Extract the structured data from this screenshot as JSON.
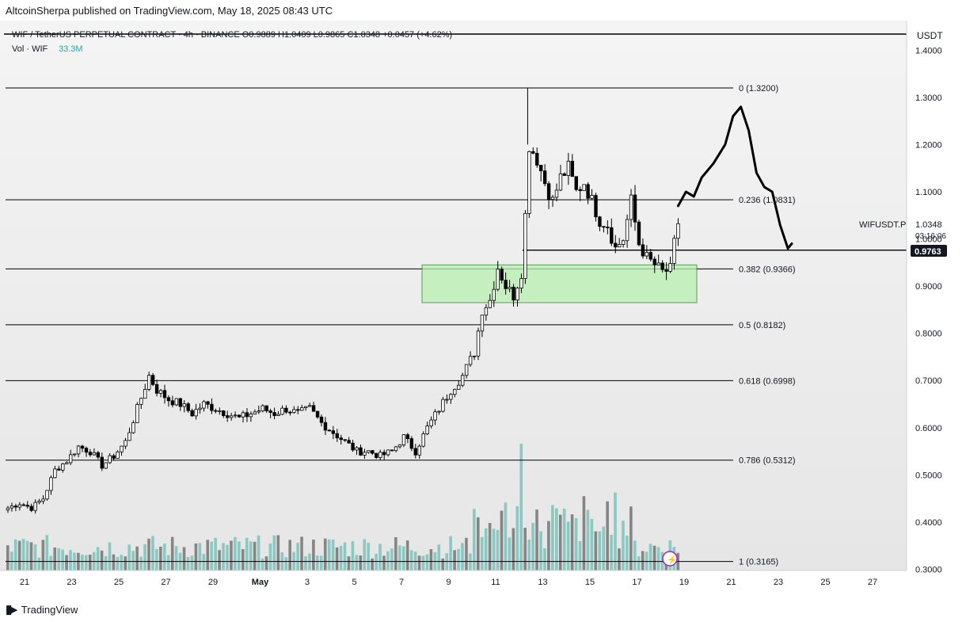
{
  "header": {
    "publisher": "AltcoinSherpa published on TradingView.com, May 18, 2025 08:43 UTC"
  },
  "legend": {
    "line1": "WIF / TetherUS PERPETUAL CONTRACT · 4h · BINANCE  O0.9889  H1.0409  L0.9865  C1.0348  +0.0457 (+4.62%)",
    "vol_label": "Vol · WIF",
    "vol_value": "33.3M"
  },
  "price_scale": {
    "currency": "USDT",
    "ticker_label": "WIFUSDT.P",
    "last_price": "1.0348",
    "countdown": "03:16:06",
    "line_price": "0.9763"
  },
  "footer": {
    "brand": "TradingView"
  },
  "colors": {
    "up": "#ffffff",
    "down": "#000000",
    "candle_border": "#000000",
    "vol_up": "#7fc4be",
    "vol_down": "#7a7a7a",
    "zone": "#b8f0b0",
    "zone_border": "#2e7d32",
    "fib_line": "#000000",
    "projection": "#000000",
    "alert": "#9c27b0"
  },
  "chart_data": {
    "type": "candlestick",
    "symbol": "WIFUSDT.P",
    "timeframe": "4h",
    "ylim": [
      0.29,
      1.45
    ],
    "y_ticks": [
      "1.4000",
      "1.3000",
      "1.2000",
      "1.1000",
      "1.0000",
      "0.9000",
      "0.8000",
      "0.7000",
      "0.6000",
      "0.5000",
      "0.4000",
      "0.3000"
    ],
    "x_ticks": [
      "21",
      "23",
      "25",
      "27",
      "29",
      "May",
      "3",
      "5",
      "7",
      "9",
      "11",
      "13",
      "15",
      "17",
      "19",
      "21",
      "23",
      "25",
      "27"
    ],
    "fib_levels": [
      {
        "label": "0 (1.3200)",
        "value": 1.32
      },
      {
        "label": "0.236 (1.0831)",
        "value": 1.0831
      },
      {
        "label": "0.382 (0.9366)",
        "value": 0.9366
      },
      {
        "label": "0.5 (0.8182)",
        "value": 0.8182
      },
      {
        "label": "0.618 (0.6998)",
        "value": 0.6998
      },
      {
        "label": "0.786 (0.5312)",
        "value": 0.5312
      },
      {
        "label": "1 (0.3165)",
        "value": 0.3165
      }
    ],
    "horizontal_line": {
      "value": 0.9763
    },
    "support_zone": {
      "top": 0.945,
      "bottom": 0.865
    },
    "anchors": [
      [
        0,
        0.43
      ],
      [
        3,
        0.44
      ],
      [
        6,
        0.43
      ],
      [
        9,
        0.45
      ],
      [
        12,
        0.51
      ],
      [
        15,
        0.53
      ],
      [
        18,
        0.56
      ],
      [
        21,
        0.55
      ],
      [
        24,
        0.52
      ],
      [
        27,
        0.54
      ],
      [
        30,
        0.57
      ],
      [
        33,
        0.64
      ],
      [
        36,
        0.71
      ],
      [
        38,
        0.68
      ],
      [
        41,
        0.66
      ],
      [
        44,
        0.65
      ],
      [
        47,
        0.63
      ],
      [
        50,
        0.65
      ],
      [
        53,
        0.64
      ],
      [
        56,
        0.63
      ],
      [
        59,
        0.62
      ],
      [
        62,
        0.63
      ],
      [
        65,
        0.64
      ],
      [
        68,
        0.63
      ],
      [
        71,
        0.64
      ],
      [
        74,
        0.63
      ],
      [
        77,
        0.64
      ],
      [
        80,
        0.61
      ],
      [
        83,
        0.59
      ],
      [
        86,
        0.57
      ],
      [
        89,
        0.55
      ],
      [
        92,
        0.55
      ],
      [
        95,
        0.54
      ],
      [
        98,
        0.55
      ],
      [
        101,
        0.58
      ],
      [
        104,
        0.55
      ],
      [
        107,
        0.6
      ],
      [
        110,
        0.64
      ],
      [
        113,
        0.68
      ],
      [
        116,
        0.71
      ],
      [
        119,
        0.76
      ],
      [
        121,
        0.85
      ],
      [
        123,
        0.87
      ],
      [
        125,
        0.94
      ],
      [
        127,
        0.9
      ],
      [
        129,
        0.88
      ],
      [
        131,
        0.93
      ],
      [
        132,
        1.05
      ],
      [
        133,
        1.2
      ],
      [
        135,
        1.17
      ],
      [
        137,
        1.12
      ],
      [
        139,
        1.08
      ],
      [
        141,
        1.13
      ],
      [
        143,
        1.15
      ],
      [
        145,
        1.1
      ],
      [
        147,
        1.12
      ],
      [
        149,
        1.08
      ],
      [
        151,
        1.04
      ],
      [
        153,
        1.03
      ],
      [
        155,
        0.98
      ],
      [
        157,
        1.0
      ],
      [
        159,
        1.08
      ],
      [
        161,
        0.99
      ],
      [
        163,
        0.96
      ],
      [
        165,
        0.945
      ],
      [
        167,
        0.93
      ],
      [
        169,
        0.935
      ],
      [
        170,
        0.99
      ],
      [
        171,
        1.035
      ]
    ],
    "volume_peaks": {
      "May 9": "0.5",
      "May 12": "0.6"
    },
    "projection_path": [
      [
        171,
        1.07
      ],
      [
        173,
        1.1
      ],
      [
        175,
        1.09
      ],
      [
        177,
        1.13
      ],
      [
        180,
        1.16
      ],
      [
        183,
        1.2
      ],
      [
        185,
        1.26
      ],
      [
        187,
        1.28
      ],
      [
        189,
        1.23
      ],
      [
        191,
        1.14
      ],
      [
        193,
        1.11
      ],
      [
        195,
        1.1
      ],
      [
        197,
        1.03
      ],
      [
        199,
        0.98
      ],
      [
        200,
        0.99
      ]
    ]
  }
}
